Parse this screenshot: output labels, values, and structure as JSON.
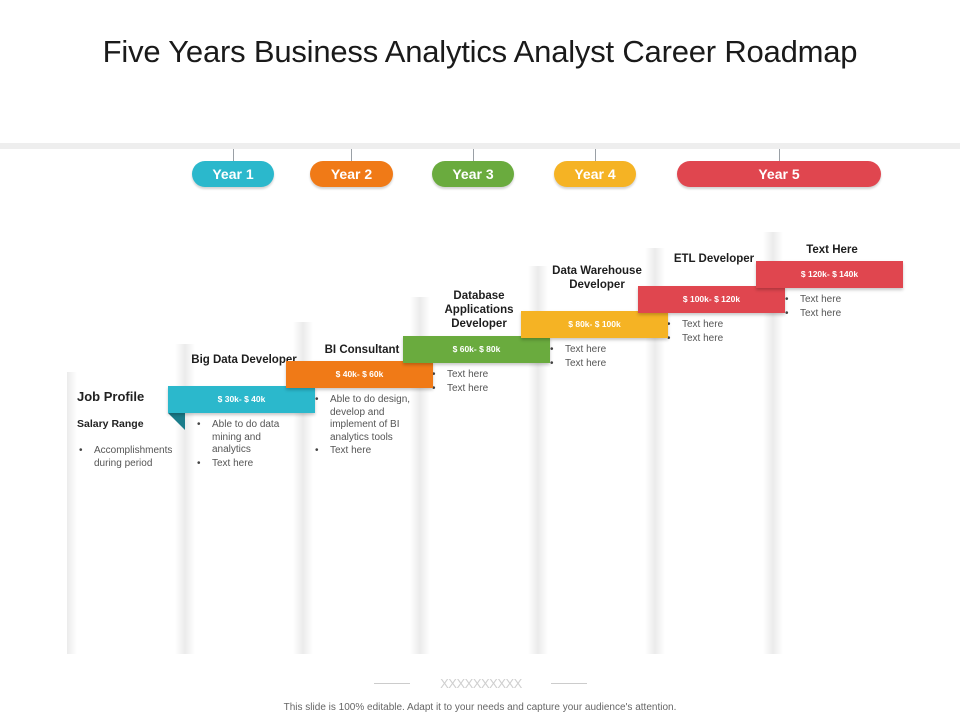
{
  "title": "Five Years Business Analytics Analyst Career Roadmap",
  "years": [
    {
      "label": "Year 1",
      "color": "#2bb8cc"
    },
    {
      "label": "Year 2",
      "color": "#f07a17"
    },
    {
      "label": "Year 3",
      "color": "#6aab3e"
    },
    {
      "label": "Year 4",
      "color": "#f5b324"
    },
    {
      "label": "Year 5",
      "color": "#e0464f"
    }
  ],
  "legend": {
    "job_profile": "Job Profile",
    "salary_range": "Salary Range",
    "accomplishments": [
      "Accomplishments during period"
    ]
  },
  "stages": [
    {
      "title": "Big Data Developer",
      "salary": "$ 30k- $ 40k",
      "color": "#2bb8cc",
      "fold_color": "#1a7c8a",
      "bullets": [
        "Able to do data mining and analytics",
        "Text here"
      ]
    },
    {
      "title": "BI Consultant",
      "salary": "$ 40k- $ 60k",
      "color": "#f07a17",
      "fold_color": "#a65008",
      "bullets": [
        "Able to do design, develop and implement of BI analytics tools",
        "Text here"
      ]
    },
    {
      "title": "Database Applications Developer",
      "salary": "$ 60k- $ 80k",
      "color": "#6aab3e",
      "fold_color": "#3f7020",
      "bullets": [
        "Text here",
        "Text here"
      ]
    },
    {
      "title": "Data Warehouse Developer",
      "salary": "$ 80k- $ 100k",
      "color": "#f5b324",
      "fold_color": "#a8760c",
      "bullets": [
        "Text here",
        "Text here"
      ]
    },
    {
      "title": "ETL Developer",
      "salary": "$ 100k- $ 120k",
      "color": "#e0464f",
      "fold_color": "#8e1e25",
      "bullets": [
        "Text here",
        "Text here"
      ]
    },
    {
      "title": "Text Here",
      "salary": "$ 120k- $ 140k",
      "color": "#e0464f",
      "fold_color": "#8e1e25",
      "bullets": [
        "Text here",
        "Text here"
      ]
    }
  ],
  "footer": {
    "separator": "XXXXXXXXXX",
    "note": "This slide is 100% editable. Adapt it to your needs and capture your audience's attention."
  }
}
